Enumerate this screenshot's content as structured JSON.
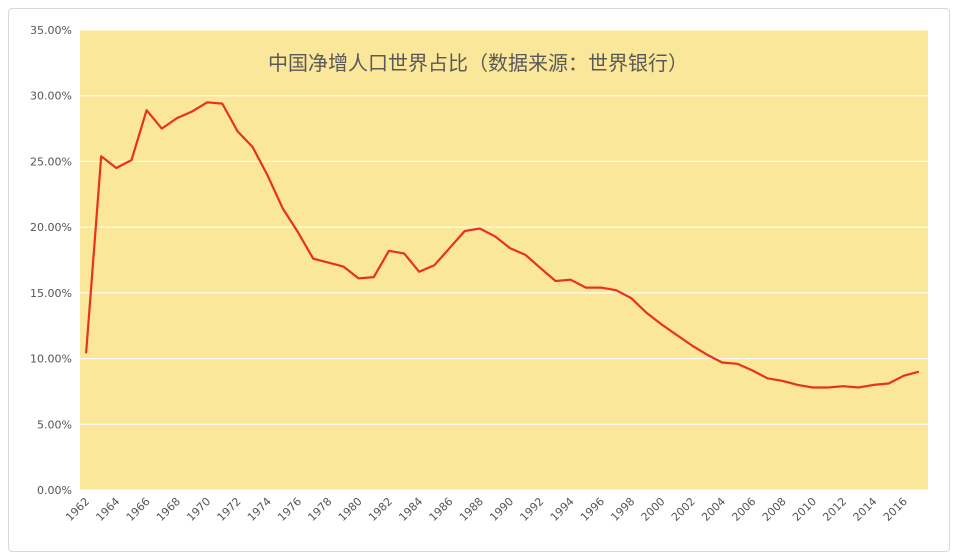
{
  "chart_data": {
    "type": "line",
    "title": "中国净增人口世界占比（数据来源：世界银行）",
    "xlabel": "",
    "ylabel": "",
    "ylim": [
      0,
      35
    ],
    "y_ticks": [
      "0.00%",
      "5.00%",
      "10.00%",
      "15.00%",
      "20.00%",
      "25.00%",
      "30.00%",
      "35.00%"
    ],
    "x_tick_labels": [
      "1962",
      "1964",
      "1966",
      "1968",
      "1970",
      "1972",
      "1974",
      "1976",
      "1978",
      "1980",
      "1982",
      "1984",
      "1986",
      "1988",
      "1990",
      "1992",
      "1994",
      "1996",
      "1998",
      "2000",
      "2002",
      "2004",
      "2006",
      "2008",
      "2010",
      "2012",
      "2014",
      "2016"
    ],
    "grid": true,
    "legend": "none",
    "colors": {
      "plot_background": "#fbe79a",
      "line": "#e8311f",
      "grid": "#ffffff"
    },
    "series": [
      {
        "x": [
          1962,
          1963,
          1964,
          1965,
          1966,
          1967,
          1968,
          1969,
          1970,
          1971,
          1972,
          1973,
          1974,
          1975,
          1976,
          1977,
          1978,
          1979,
          1980,
          1981,
          1982,
          1983,
          1984,
          1985,
          1986,
          1987,
          1988,
          1989,
          1990,
          1991,
          1992,
          1993,
          1994,
          1995,
          1996,
          1997,
          1998,
          1999,
          2000,
          2001,
          2002,
          2003,
          2004,
          2005,
          2006,
          2007,
          2008,
          2009,
          2010,
          2011,
          2012,
          2013,
          2014,
          2015,
          2016,
          2017
        ],
        "values": [
          10.4,
          25.4,
          24.5,
          25.1,
          28.9,
          27.5,
          28.3,
          28.8,
          29.5,
          29.4,
          27.3,
          26.1,
          23.9,
          21.4,
          19.6,
          17.6,
          17.3,
          17.0,
          16.1,
          16.2,
          18.2,
          18.0,
          16.6,
          17.1,
          18.4,
          19.7,
          19.9,
          19.3,
          18.4,
          17.9,
          16.9,
          15.9,
          16.0,
          15.4,
          15.4,
          15.2,
          14.6,
          13.5,
          12.6,
          11.8,
          11.0,
          10.3,
          9.7,
          9.6,
          9.1,
          8.5,
          8.3,
          8.0,
          7.8,
          7.8,
          7.9,
          7.8,
          8.0,
          8.1,
          8.7,
          9.0
        ]
      }
    ]
  }
}
